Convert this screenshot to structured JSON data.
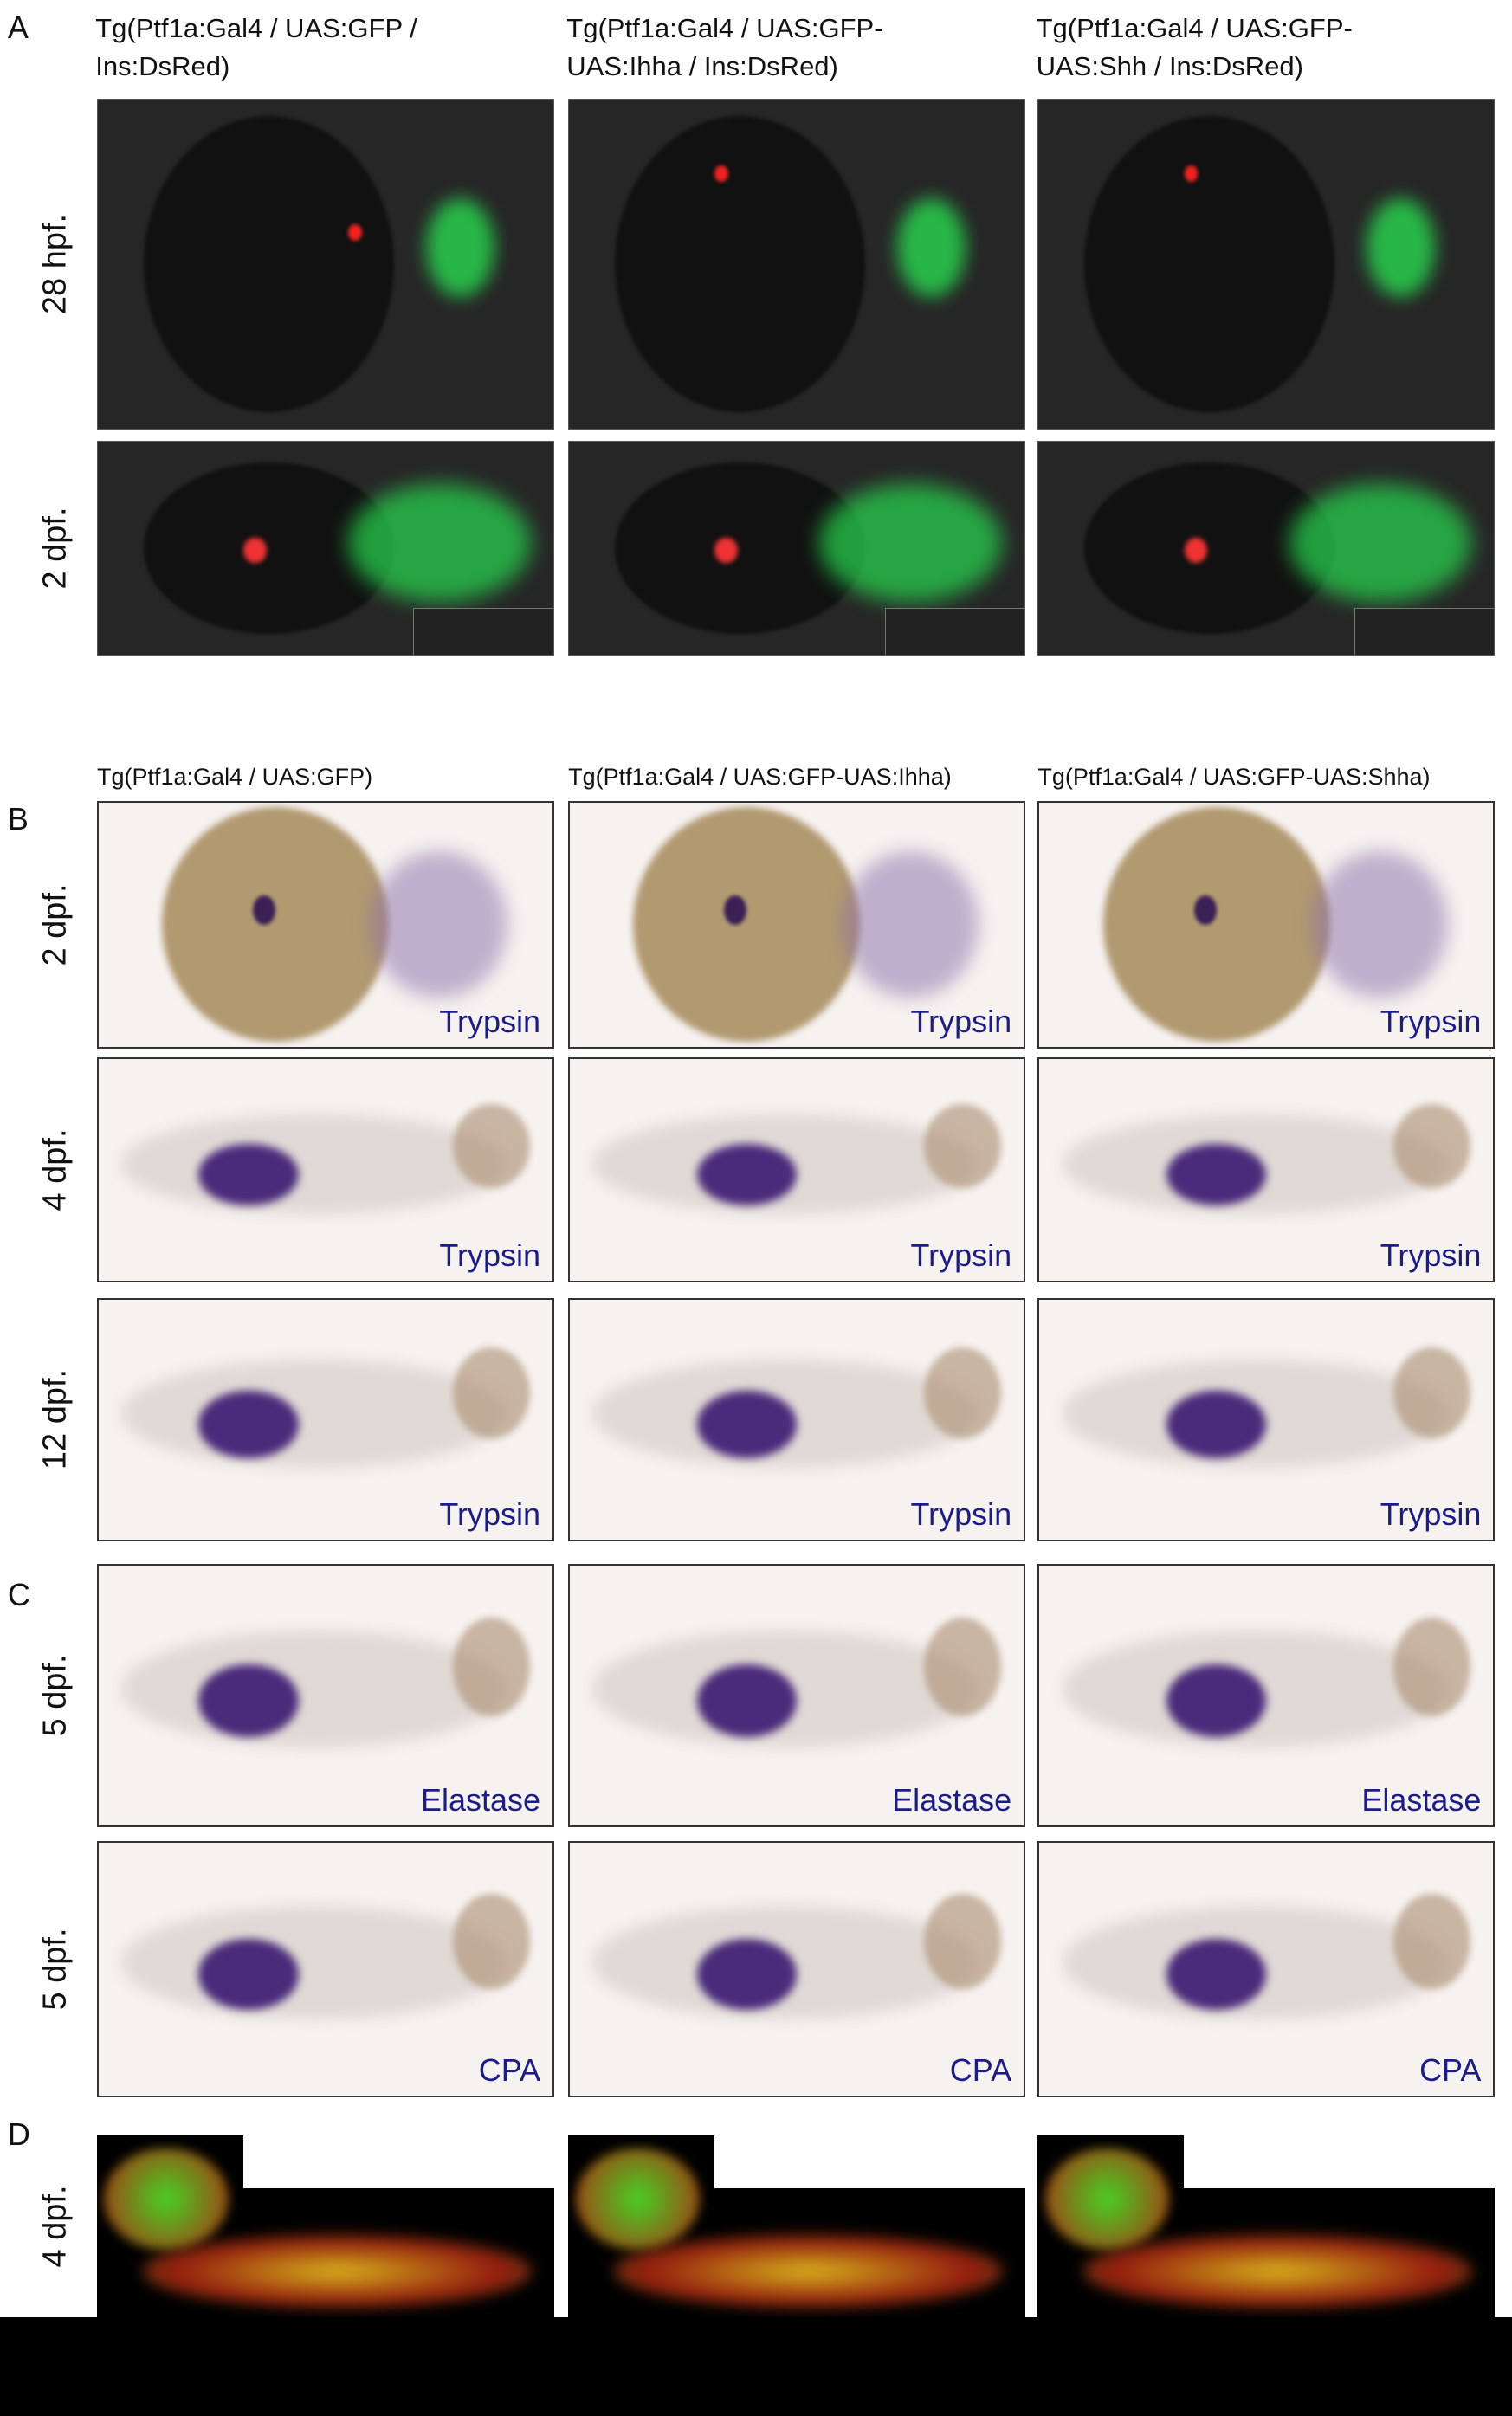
{
  "panels": [
    {
      "letter": "A",
      "columns": [
        [
          "Tg(Ptf1a:Gal4 / UAS:GFP /",
          "Ins:DsRed)"
        ],
        [
          "Tg(Ptf1a:Gal4 / UAS:GFP-",
          "UAS:Ihha / Ins:DsRed)"
        ],
        [
          "Tg(Ptf1a:Gal4 / UAS:GFP-",
          "UAS:Shh / Ins:DsRed)"
        ]
      ],
      "rows": [
        {
          "label": "28 hpf."
        },
        {
          "label": "2 dpf."
        }
      ]
    },
    {
      "letter": "B",
      "columns": [
        "Tg(Ptf1a:Gal4 / UAS:GFP)",
        "Tg(Ptf1a:Gal4 / UAS:GFP-UAS:Ihha)",
        "Tg(Ptf1a:Gal4 / UAS:GFP-UAS:Shha)"
      ],
      "rows": [
        {
          "label": "2 dpf.",
          "stain": [
            "Trypsin",
            "Trypsin",
            "Trypsin"
          ]
        },
        {
          "label": "4 dpf.",
          "stain": [
            "Trypsin",
            "Trypsin",
            "Trypsin"
          ]
        },
        {
          "label": "12 dpf.",
          "stain": [
            "Trypsin",
            "Trypsin",
            "Trypsin"
          ]
        }
      ]
    },
    {
      "letter": "C",
      "rows": [
        {
          "label": "5 dpf.",
          "stain": [
            "Elastase",
            "Elastase",
            "Elastase"
          ]
        },
        {
          "label": "5 dpf.",
          "stain": [
            "CPA",
            "CPA",
            "CPA"
          ]
        }
      ]
    },
    {
      "letter": "D",
      "rows": [
        {
          "label": "4 dpf."
        }
      ]
    }
  ]
}
